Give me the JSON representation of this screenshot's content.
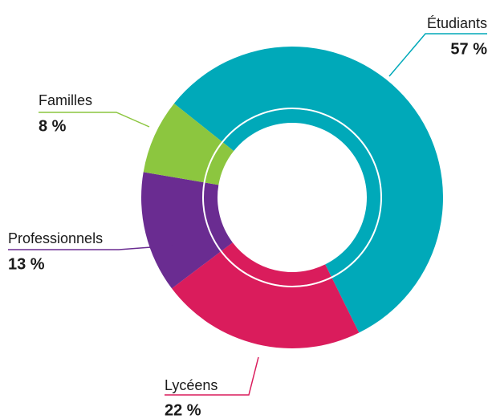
{
  "chart_data": {
    "type": "pie",
    "donut": true,
    "categories": [
      "Étudiants",
      "Lycéens",
      "Professionnels",
      "Familles"
    ],
    "values": [
      57,
      22,
      13,
      8
    ],
    "value_labels": [
      "57 %",
      "22 %",
      "13 %",
      "8 %"
    ],
    "colors": [
      "#00a9b9",
      "#da1c5c",
      "#6a2c91",
      "#8cc63f"
    ]
  }
}
